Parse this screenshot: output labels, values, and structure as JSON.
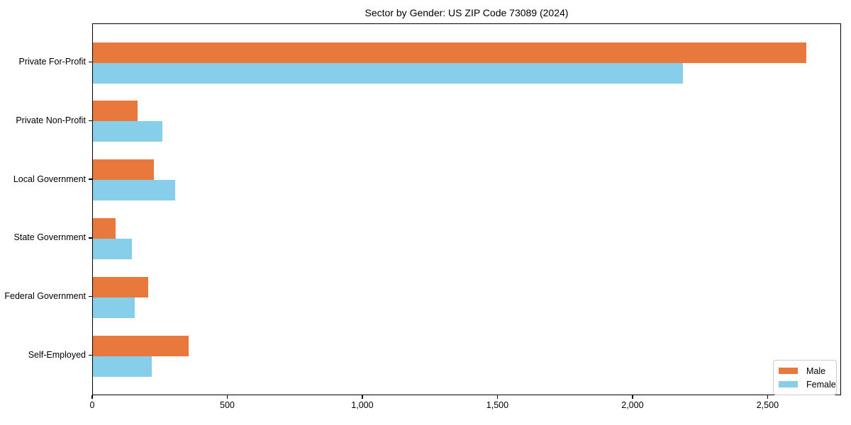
{
  "chart_data": {
    "type": "bar",
    "orientation": "horizontal",
    "title": "Sector by Gender: US ZIP Code 73089 (2024)",
    "categories": [
      "Private For-Profit",
      "Private Non-Profit",
      "Local Government",
      "State Government",
      "Federal Government",
      "Self-Employed"
    ],
    "series": [
      {
        "name": "Male",
        "color": "#e8783b",
        "values": [
          2640,
          165,
          225,
          83,
          204,
          353
        ]
      },
      {
        "name": "Female",
        "color": "#87ceeb",
        "values": [
          2183,
          257,
          304,
          143,
          154,
          217
        ]
      }
    ],
    "xlabel": "",
    "ylabel": "",
    "xlim": [
      0,
      2772
    ],
    "xticks": [
      0,
      500,
      1000,
      1500,
      2000,
      2500
    ],
    "xtick_labels": [
      "0",
      "500",
      "1,000",
      "1,500",
      "2,000",
      "2,500"
    ],
    "grid": false,
    "legend_position": "lower right",
    "colors": {
      "spine": "#000000",
      "background": "#ffffff",
      "legend_border": "#cccccc"
    }
  }
}
